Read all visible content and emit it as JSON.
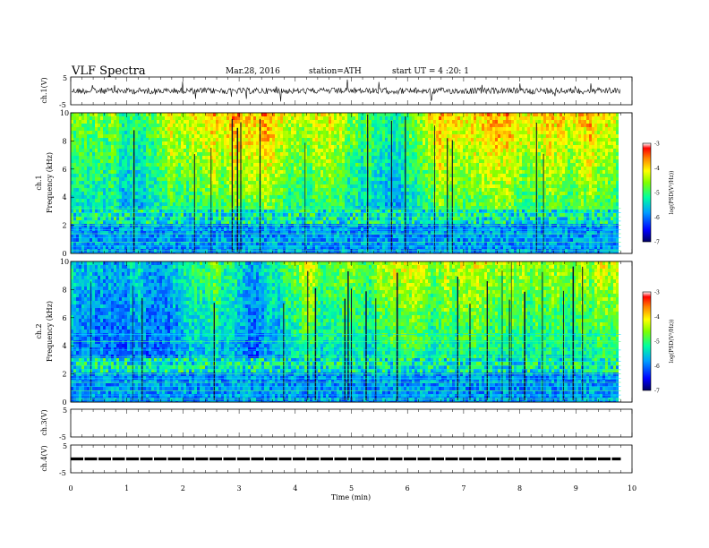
{
  "header": {
    "title": "VLF Spectra",
    "date": "Mar.28, 2016",
    "station": "station=ATH",
    "start": "start UT = 4 :20: 1"
  },
  "chart_data": [
    {
      "type": "line",
      "panel": "ch1",
      "ylabel": "ch.1(V)",
      "ylim": [
        -5,
        5
      ],
      "yticks": [
        "5",
        "-5"
      ],
      "description_series": "broadband waveform, noisy around 0 V with spikes",
      "baseline": 0.0
    },
    {
      "type": "heatmap",
      "panel": "ch1-spectrogram",
      "ylabel_top": "ch.1",
      "ylabel": "Frequency (kHz)",
      "ylim": [
        0,
        10
      ],
      "yticks": [
        "0",
        "2",
        "4",
        "6",
        "8",
        "10"
      ],
      "colorbar": {
        "label": "log(PSD(V²/Hz))",
        "range": [
          -7,
          -3
        ],
        "ticks": [
          "-3",
          "-4",
          "-5",
          "-6",
          "-7"
        ]
      },
      "bands_khz": [
        0.2,
        0.5,
        0.8,
        1.1,
        1.4,
        1.7,
        2.0,
        2.3,
        2.6,
        2.9,
        3.2
      ]
    },
    {
      "type": "heatmap",
      "panel": "ch2-spectrogram",
      "ylabel_top": "ch.2",
      "ylabel": "Frequency (kHz)",
      "ylim": [
        0,
        10
      ],
      "yticks": [
        "0",
        "2",
        "4",
        "6",
        "8",
        "10"
      ],
      "colorbar": {
        "label": "log(PSD(V²/Hz))",
        "range": [
          -7,
          -3
        ],
        "ticks": [
          "-3",
          "-4",
          "-5",
          "-6",
          "-7"
        ]
      },
      "bands_khz": [
        0.2,
        0.5,
        0.8,
        1.1,
        1.4,
        1.7,
        2.0,
        2.3,
        2.6,
        2.9,
        3.2,
        3.7,
        4.3,
        4.8
      ]
    },
    {
      "type": "line",
      "panel": "ch3",
      "ylabel": "ch.3(V)",
      "ylim": [
        -5,
        5
      ],
      "yticks": [
        "5",
        "-5"
      ]
    },
    {
      "type": "line",
      "panel": "ch4",
      "ylabel": "ch.4(V)",
      "ylim": [
        -5,
        5
      ],
      "yticks": [
        "5",
        "-5"
      ],
      "level": 0.0
    }
  ],
  "xaxis": {
    "label": "Time (min)",
    "xlim": [
      0,
      10
    ],
    "ticks": [
      "0",
      "1",
      "2",
      "3",
      "4",
      "5",
      "6",
      "7",
      "8",
      "9",
      "10"
    ],
    "data_end": 9.8
  },
  "colors": {
    "low": "#1a0080",
    "mid_low": "#00c8ff",
    "mid": "#00ff80",
    "mid_high": "#ffff00",
    "high": "#ff2000"
  }
}
